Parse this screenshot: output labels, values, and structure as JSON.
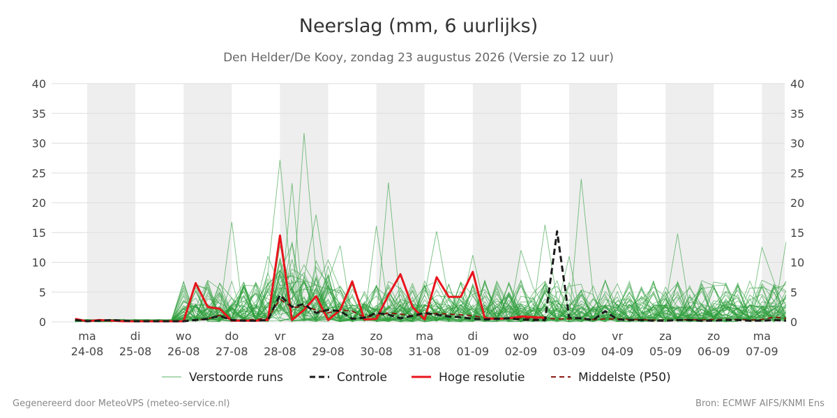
{
  "chart_data": {
    "type": "line",
    "title": "Neerslag (mm, 6 uurlijks)",
    "subtitle": "Den Helder/De Kooy, zondag 23 augustus 2026 (Versie zo 12 uur)",
    "ylim": [
      0,
      40
    ],
    "y_ticks": [
      0,
      5,
      10,
      15,
      20,
      25,
      30,
      35,
      40
    ],
    "x_range_days": [
      0,
      14.5
    ],
    "x_ticks": [
      {
        "day": 0,
        "weekday": "ma",
        "date": "24-08"
      },
      {
        "day": 1,
        "weekday": "di",
        "date": "25-08"
      },
      {
        "day": 2,
        "weekday": "wo",
        "date": "26-08"
      },
      {
        "day": 3,
        "weekday": "do",
        "date": "27-08"
      },
      {
        "day": 4,
        "weekday": "vr",
        "date": "28-08"
      },
      {
        "day": 5,
        "weekday": "za",
        "date": "29-08"
      },
      {
        "day": 6,
        "weekday": "zo",
        "date": "30-08"
      },
      {
        "day": 7,
        "weekday": "ma",
        "date": "31-08"
      },
      {
        "day": 8,
        "weekday": "di",
        "date": "01-09"
      },
      {
        "day": 9,
        "weekday": "wo",
        "date": "02-09"
      },
      {
        "day": 10,
        "weekday": "do",
        "date": "03-09"
      },
      {
        "day": 11,
        "weekday": "vr",
        "date": "04-09"
      },
      {
        "day": 12,
        "weekday": "za",
        "date": "05-09"
      },
      {
        "day": 13,
        "weekday": "zo",
        "date": "06-09"
      },
      {
        "day": 14,
        "weekday": "ma",
        "date": "07-09"
      }
    ],
    "shaded_days": [
      0,
      2,
      4,
      6,
      8,
      10,
      12,
      14
    ],
    "grid": true,
    "legend_position": "bottom",
    "series": [
      {
        "name": "Controle",
        "color": "#1a1a1a",
        "style": "dashed",
        "x": [
          -0.25,
          0,
          0.25,
          0.5,
          0.75,
          1,
          1.25,
          1.5,
          1.75,
          2,
          2.25,
          2.5,
          2.75,
          3,
          3.25,
          3.5,
          3.75,
          4,
          4.25,
          4.5,
          4.75,
          5,
          5.25,
          5.5,
          5.75,
          6,
          6.25,
          6.5,
          6.75,
          7,
          7.25,
          7.5,
          7.75,
          8,
          8.25,
          8.5,
          8.75,
          9,
          9.25,
          9.5,
          9.75,
          10,
          10.25,
          10.5,
          10.75,
          11,
          11.25,
          11.5,
          11.75,
          12,
          12.25,
          12.5,
          12.75,
          13,
          13.25,
          13.5,
          13.75,
          14,
          14.25,
          14.5
        ],
        "y": [
          0.3,
          0.1,
          0.2,
          0.3,
          0.2,
          0.1,
          0.1,
          0.1,
          0.1,
          0.1,
          0.3,
          0.5,
          1.0,
          0.3,
          0.2,
          0.2,
          0.3,
          4.5,
          2.5,
          3.0,
          1.5,
          2.0,
          1.8,
          0.5,
          0.7,
          1.5,
          1.2,
          0.6,
          1.0,
          1.5,
          1.2,
          0.9,
          0.8,
          0.5,
          0.4,
          0.5,
          0.6,
          0.4,
          0.3,
          0.3,
          15.2,
          0.7,
          0.6,
          0.3,
          1.8,
          0.4,
          0.3,
          0.3,
          0.2,
          0.2,
          0.3,
          0.3,
          0.2,
          0.2,
          0.3,
          0.3,
          0.2,
          0.2,
          0.3,
          0.2
        ]
      },
      {
        "name": "Hoge resolutie",
        "color": "#e8141c",
        "style": "solid",
        "x": [
          -0.25,
          0,
          0.25,
          0.5,
          0.75,
          1,
          1.25,
          1.5,
          1.75,
          2,
          2.25,
          2.5,
          2.75,
          3,
          3.25,
          3.5,
          3.75,
          4,
          4.25,
          4.5,
          4.75,
          5,
          5.25,
          5.5,
          5.75,
          6,
          6.25,
          6.5,
          6.75,
          7,
          7.25,
          7.5,
          7.75,
          8,
          8.25,
          8.5,
          8.75,
          9,
          9.25,
          9.5
        ],
        "y": [
          0.5,
          0.1,
          0.3,
          0.2,
          0.1,
          0.1,
          0.1,
          0.1,
          0.1,
          0.1,
          6.5,
          2.5,
          2.2,
          0.2,
          0.2,
          0.2,
          0.3,
          14.5,
          0.3,
          2.0,
          4.3,
          0.3,
          2.0,
          6.8,
          0.4,
          0.5,
          4.5,
          8.0,
          2.5,
          0.4,
          7.5,
          4.2,
          4.2,
          8.4,
          0.6,
          0.5,
          0.6,
          0.9,
          0.8,
          0.7
        ]
      },
      {
        "name": "Middelste (P50)",
        "color": "#8b1a10",
        "style": "dashed",
        "x": [
          -0.25,
          0,
          0.25,
          0.5,
          0.75,
          1,
          1.25,
          1.5,
          1.75,
          2,
          2.25,
          2.5,
          2.75,
          3,
          3.25,
          3.5,
          3.75,
          4,
          4.25,
          4.5,
          4.75,
          5,
          5.25,
          5.5,
          5.75,
          6,
          6.25,
          6.5,
          6.75,
          7,
          7.25,
          7.5,
          7.75,
          8,
          8.25,
          8.5,
          8.75,
          9,
          9.25,
          9.5,
          9.75,
          10,
          10.25,
          10.5,
          10.75,
          11,
          11.25,
          11.5,
          11.75,
          12,
          12.25,
          12.5,
          12.75,
          13,
          13.25,
          13.5,
          13.75,
          14,
          14.25,
          14.5
        ],
        "y": [
          0.4,
          0.1,
          0.2,
          0.2,
          0.1,
          0.1,
          0.1,
          0.1,
          0.1,
          0.1,
          0.3,
          0.5,
          1.1,
          0.3,
          0.3,
          0.4,
          0.6,
          3.8,
          2.4,
          2.6,
          2.0,
          1.5,
          2.0,
          1.8,
          0.8,
          1.0,
          1.5,
          1.3,
          1.0,
          1.2,
          1.4,
          1.3,
          1.2,
          1.0,
          0.7,
          0.6,
          0.6,
          0.7,
          0.6,
          0.6,
          0.5,
          0.5,
          0.6,
          0.4,
          0.5,
          0.5,
          0.4,
          0.4,
          0.3,
          0.3,
          0.3,
          0.4,
          0.3,
          0.4,
          0.4,
          0.4,
          0.3,
          0.4,
          0.8,
          0.6
        ]
      }
    ],
    "ensemble": {
      "name": "Verstoorde runs",
      "color": "#2e9e3c",
      "count": 50,
      "x_start": -0.25,
      "step": 0.25,
      "peaks": [
        {
          "x": 4.0,
          "y": 27.2
        },
        {
          "x": 4.25,
          "y": 23.3
        },
        {
          "x": 4.5,
          "y": 31.7
        },
        {
          "x": 4.75,
          "y": 18.0
        },
        {
          "x": 3.0,
          "y": 16.8
        },
        {
          "x": 6.25,
          "y": 23.4
        },
        {
          "x": 10.25,
          "y": 24.0
        },
        {
          "x": 9.5,
          "y": 16.3
        },
        {
          "x": 7.25,
          "y": 15.2
        },
        {
          "x": 12.25,
          "y": 14.8
        },
        {
          "x": 14.5,
          "y": 13.4
        },
        {
          "x": 8.0,
          "y": 11.2
        },
        {
          "x": 5.25,
          "y": 12.8
        },
        {
          "x": 6.0,
          "y": 16.1
        },
        {
          "x": 14.0,
          "y": 12.5
        },
        {
          "x": 9.0,
          "y": 12.0
        },
        {
          "x": 10.0,
          "y": 11.0
        }
      ]
    }
  },
  "legend": {
    "ensemble_label": "Verstoorde runs",
    "controle_label": "Controle",
    "hres_label": "Hoge resolutie",
    "p50_label": "Middelste (P50)"
  },
  "footer": {
    "left": "Gegenereerd door MeteoVPS (meteo-service.nl)",
    "right": "Bron: ECMWF AIFS/KNMI Ens"
  }
}
